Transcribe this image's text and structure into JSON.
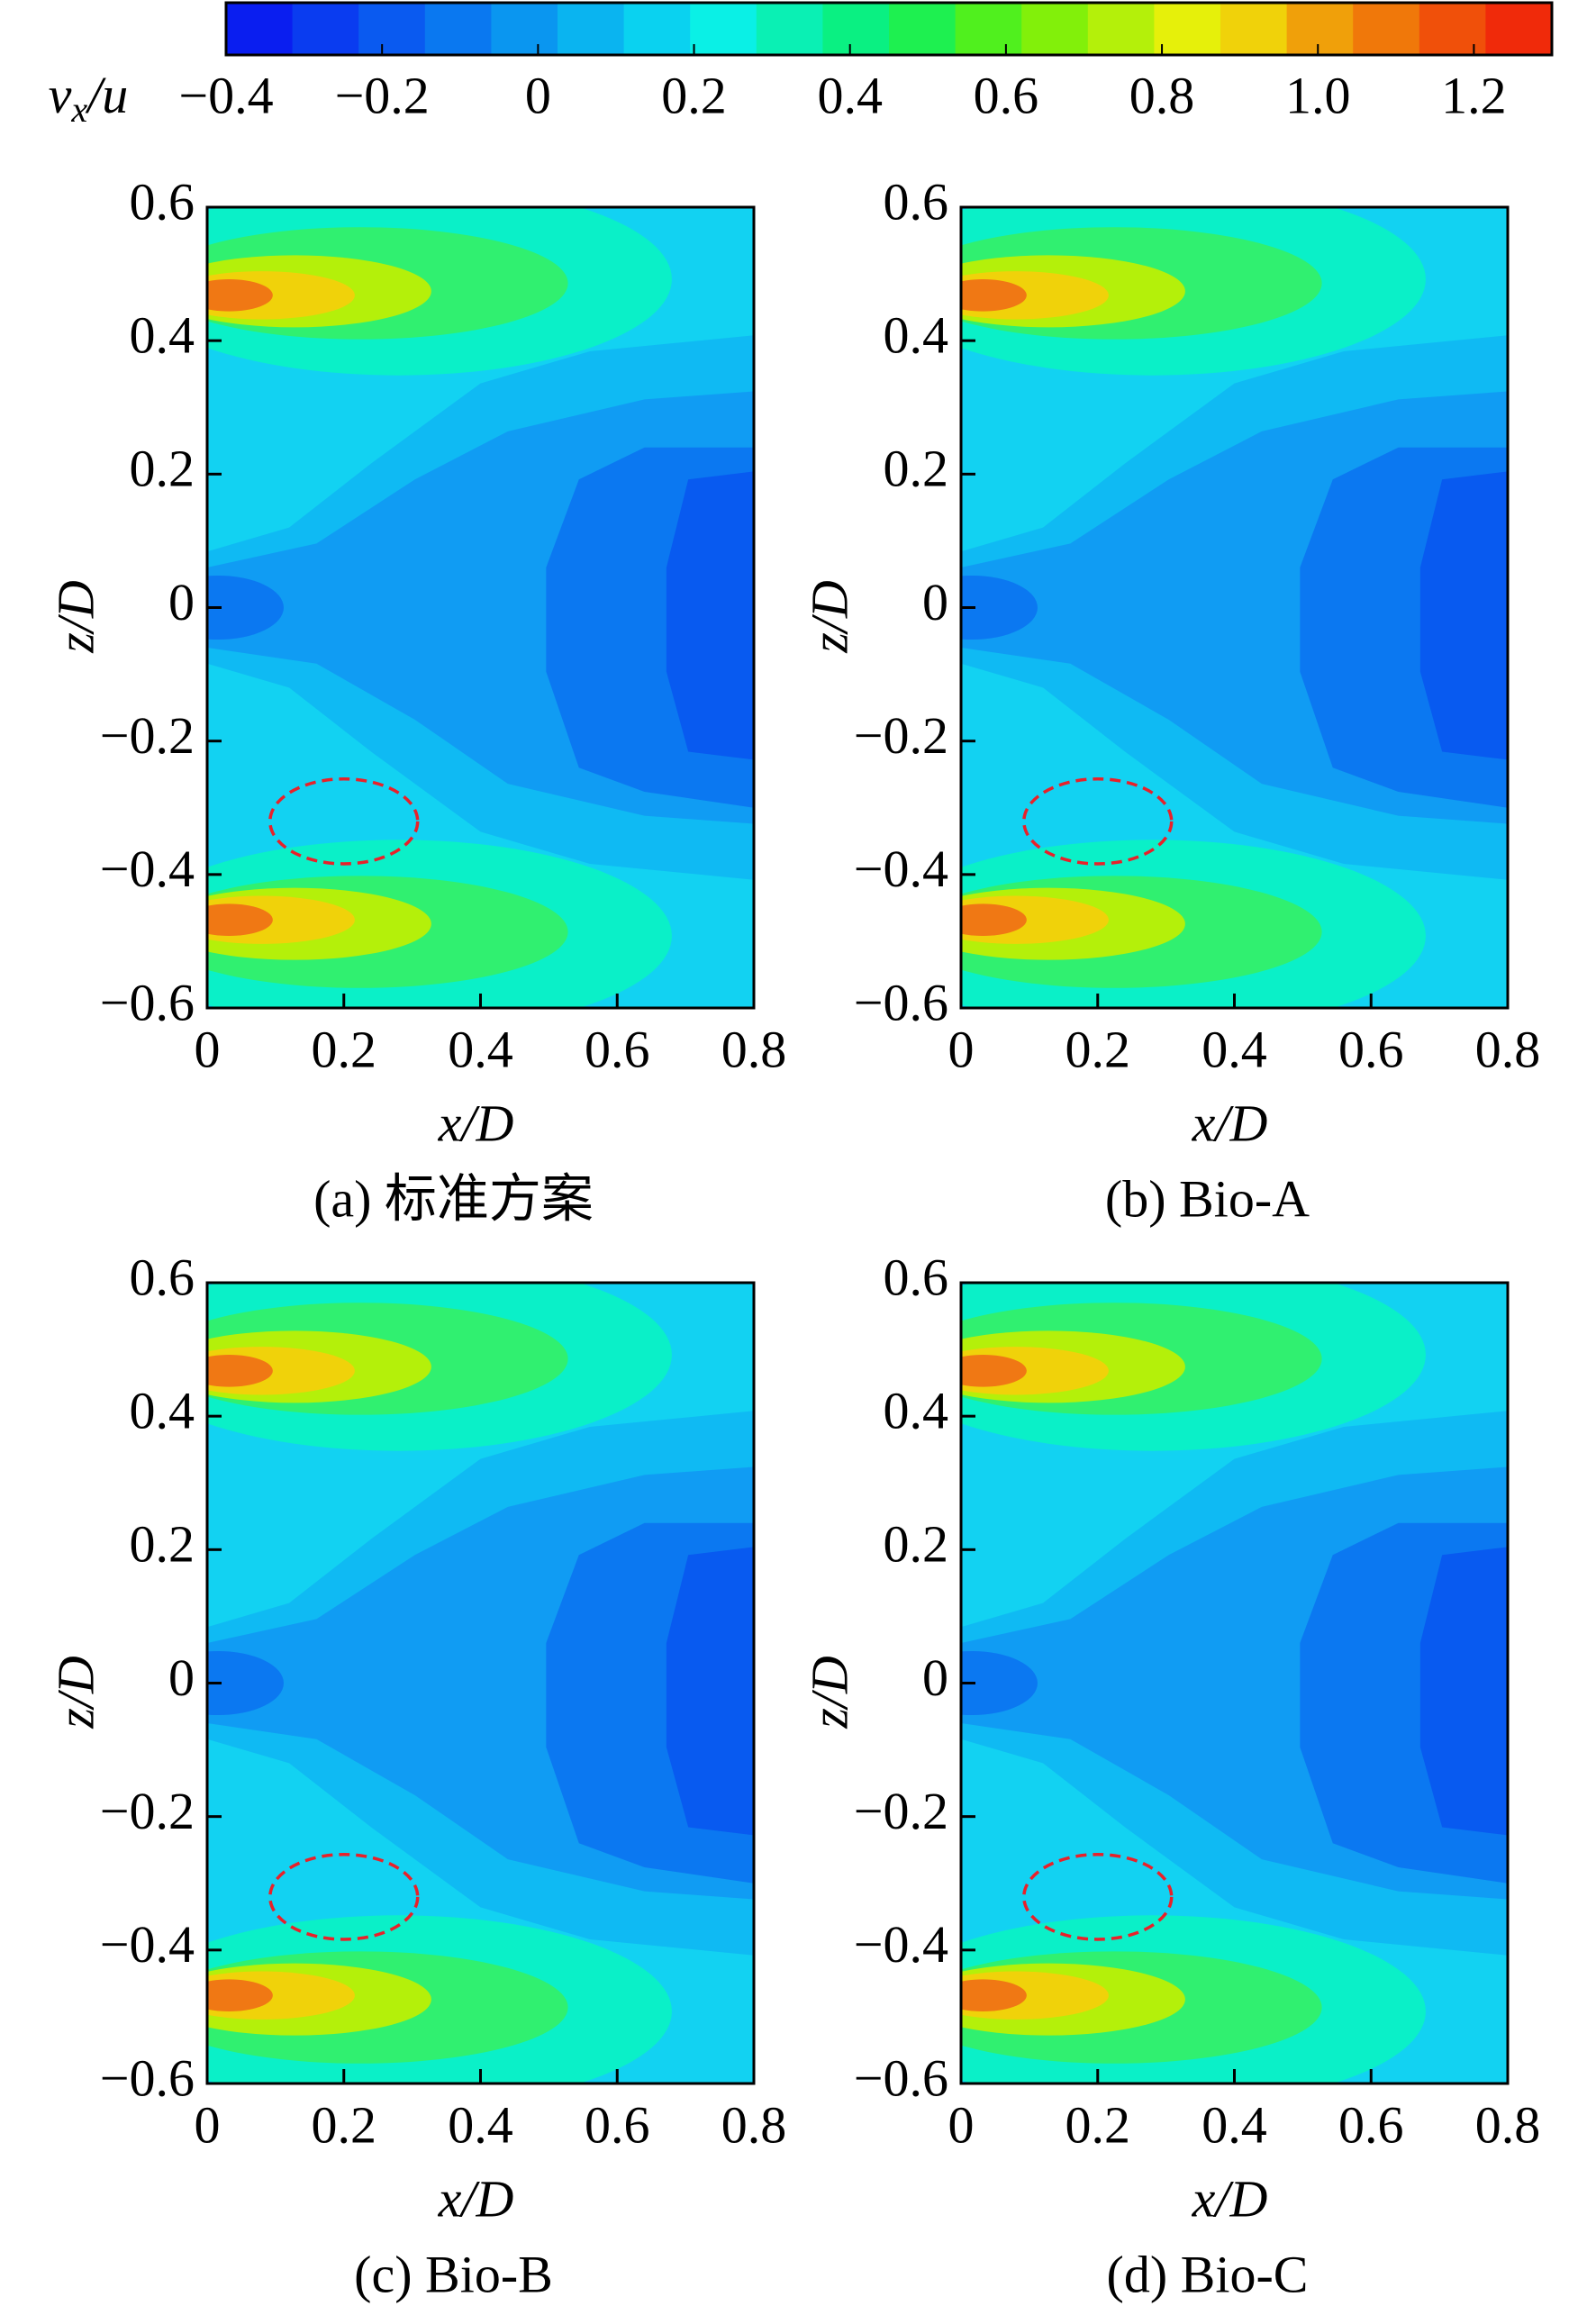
{
  "chart_data": [
    {
      "type": "colorbar",
      "xlabel": [
        "v",
        "x",
        "/u"
      ],
      "xlim": [
        -0.4,
        1.3
      ],
      "xticks": [
        {
          "value": -0.4,
          "label": "−0.4"
        },
        {
          "value": -0.2,
          "label": "−0.2"
        },
        0,
        0.2,
        0.4,
        0.6,
        0.8,
        {
          "value": 1,
          "label": "1.0"
        },
        1.2
      ],
      "colors": [
        "#0a1ef0",
        "#0a3cf0",
        "#0a5af0",
        "#0a78f0",
        "#0a96f0",
        "#0ab4f0",
        "#0ad2f0",
        "#0af0e6",
        "#0af0b4",
        "#0af082",
        "#1ef050",
        "#50f01e",
        "#82f00a",
        "#b4f00a",
        "#e6f00a",
        "#f0d20a",
        "#f0a00a",
        "#f0780a",
        "#f0500a",
        "#f02a0a"
      ]
    },
    {
      "type": "contour",
      "caption": "(a) 标准方案",
      "xlabel": "x/D",
      "ylabel": "z/D",
      "xlim": [
        0,
        0.8
      ],
      "ylim": [
        -0.6,
        0.6
      ],
      "xticks": [
        0,
        0.2,
        0.4,
        0.6,
        0.8
      ],
      "yticks": [
        {
          "value": -0.6,
          "label": "−0.6"
        },
        {
          "value": -0.4,
          "label": "−0.4"
        },
        {
          "value": -0.2,
          "label": "−0.2"
        },
        0,
        0.2,
        0.4,
        0.6
      ]
    },
    {
      "type": "contour",
      "caption": "(b) Bio-A",
      "xlabel": "x/D",
      "ylabel": "z/D",
      "xlim": [
        0,
        0.8
      ],
      "ylim": [
        -0.6,
        0.6
      ],
      "xticks": [
        0,
        0.2,
        0.4,
        0.6,
        0.8
      ],
      "yticks": [
        {
          "value": -0.6,
          "label": "−0.6"
        },
        {
          "value": -0.4,
          "label": "−0.4"
        },
        {
          "value": -0.2,
          "label": "−0.2"
        },
        0,
        0.2,
        0.4,
        0.6
      ]
    },
    {
      "type": "contour",
      "caption": "(c) Bio-B",
      "xlabel": "x/D",
      "ylabel": "z/D",
      "xlim": [
        0,
        0.8
      ],
      "ylim": [
        -0.6,
        0.6
      ],
      "xticks": [
        0,
        0.2,
        0.4,
        0.6,
        0.8
      ],
      "yticks": [
        {
          "value": -0.6,
          "label": "−0.6"
        },
        {
          "value": -0.4,
          "label": "−0.4"
        },
        {
          "value": -0.2,
          "label": "−0.2"
        },
        0,
        0.2,
        0.4,
        0.6
      ]
    },
    {
      "type": "contour",
      "caption": "(d) Bio-C",
      "xlabel": "x/D",
      "ylabel": "z/D",
      "xlim": [
        0,
        0.8
      ],
      "ylim": [
        -0.6,
        0.6
      ],
      "xticks": [
        0,
        0.2,
        0.4,
        0.6,
        0.8
      ],
      "yticks": [
        {
          "value": -0.6,
          "label": "−0.6"
        },
        {
          "value": -0.4,
          "label": "−0.4"
        },
        {
          "value": -0.2,
          "label": "−0.2"
        },
        0,
        0.2,
        0.4,
        0.6
      ]
    }
  ]
}
